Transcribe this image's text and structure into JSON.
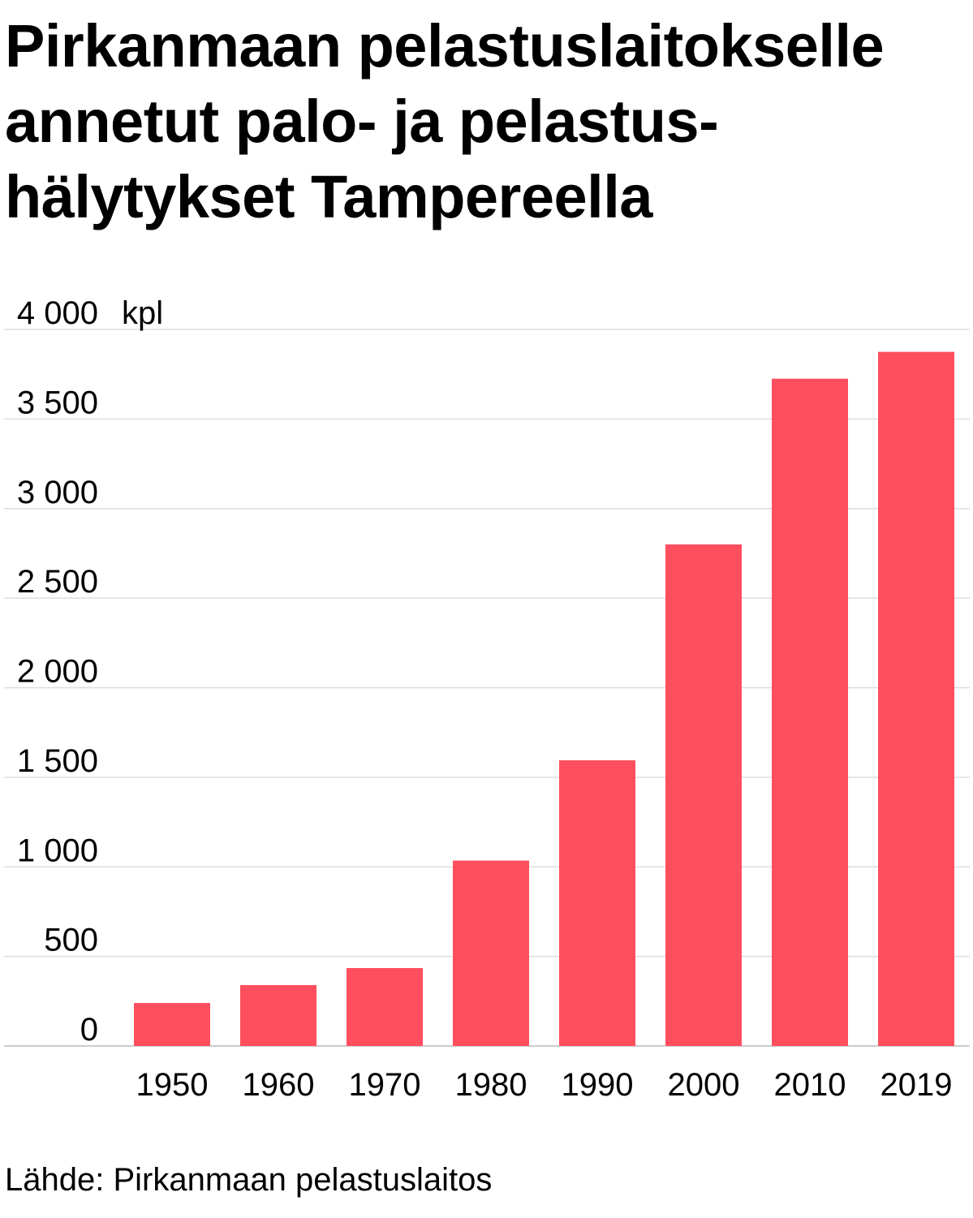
{
  "title": "Pirkanmaan pelastuslaitokselle annetut palo- ja pelastus-hälytykset Tampereella",
  "title_lines": [
    "Pirkanmaan pelastuslaitokselle",
    "annetut palo- ja pelastus-",
    "hälytykset Tampereella"
  ],
  "source": "Lähde: Pirkanmaan pelastuslaitos",
  "colors": {
    "bar": "#ff4f5e",
    "grid": "#dddddd",
    "axis": "#cccccc"
  },
  "chart_data": {
    "type": "bar",
    "categories": [
      "1950",
      "1960",
      "1970",
      "1980",
      "1990",
      "2000",
      "2010",
      "2019"
    ],
    "values": [
      240,
      340,
      435,
      1035,
      1595,
      2800,
      3725,
      3875
    ],
    "ylim": [
      0,
      4000
    ],
    "yticks": [
      0,
      500,
      1000,
      1500,
      2000,
      2500,
      3000,
      3500,
      4000
    ],
    "ytick_labels": [
      "0",
      "500",
      "1 000",
      "1 500",
      "2 000",
      "2 500",
      "3 000",
      "3 500",
      "4 000"
    ],
    "yunit": "kpl",
    "grid": true
  }
}
